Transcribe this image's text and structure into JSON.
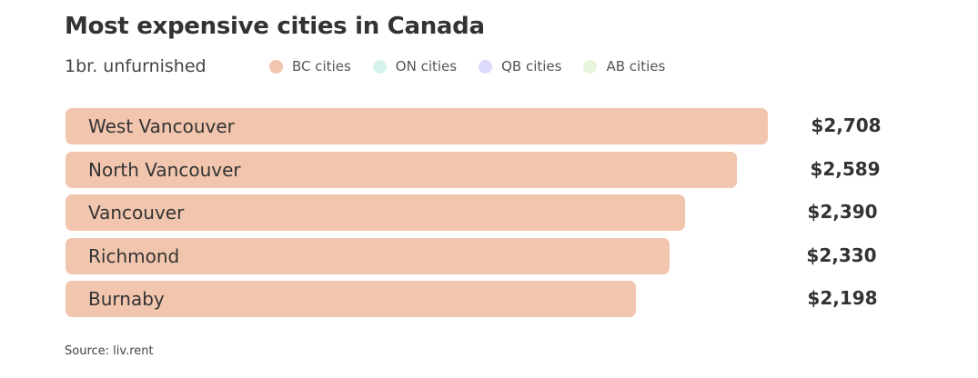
{
  "chart_data": {
    "type": "bar",
    "orientation": "horizontal",
    "title": "Most expensive cities in Canada",
    "subtitle": "1br. unfurnished",
    "legend": [
      {
        "label": "BC cities",
        "color": "#f2c6ae"
      },
      {
        "label": "ON cities",
        "color": "#d6f3ee"
      },
      {
        "label": "QB cities",
        "color": "#dcdafb"
      },
      {
        "label": "AB cities",
        "color": "#e6f6dc"
      }
    ],
    "categories": [
      "West Vancouver",
      "North Vancouver",
      "Vancouver",
      "Richmond",
      "Burnaby"
    ],
    "values": [
      2708,
      2589,
      2390,
      2330,
      2198
    ],
    "value_labels": [
      "$2,708",
      "$2,589",
      "$2,390",
      "$2,330",
      "$2,198"
    ],
    "series_group": [
      "BC cities",
      "BC cities",
      "BC cities",
      "BC cities",
      "BC cities"
    ],
    "xlim": [
      0,
      2708
    ],
    "source": "Source: liv.rent"
  }
}
